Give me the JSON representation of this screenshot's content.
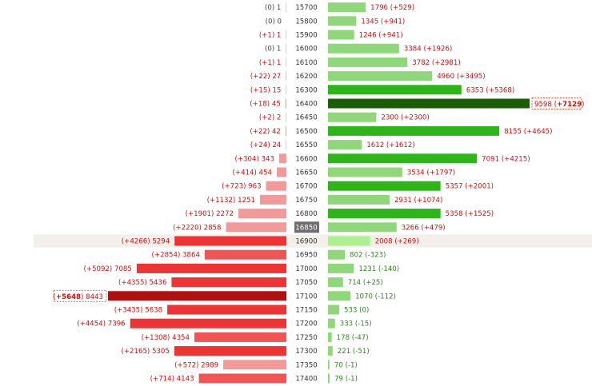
{
  "chart_data": {
    "type": "bar",
    "title": "",
    "highlight_strike": "16850",
    "colors": {
      "put_light": "#f29a9a",
      "put_mid": "#f05555",
      "put_strong": "#ec3434",
      "put_max": "#b01010",
      "call_light": "#8fd77a",
      "call_strong": "#2db51a",
      "call_max": "#1b5c06",
      "call_atm": "#aef091",
      "strike_bg_atm": "#6e6e6e",
      "row_highlight": "#f3f0ec",
      "text_red": "#cc1111",
      "text_green": "#2a8a18",
      "text_grey": "#444444"
    },
    "rows": [
      {
        "strike": "15700",
        "put_oi": 1,
        "put_chg": "(0)",
        "call_oi": 1796,
        "call_chg": "(+529)"
      },
      {
        "strike": "15800",
        "put_oi": 0,
        "put_chg": "(0)",
        "call_oi": 1345,
        "call_chg": "(+941)"
      },
      {
        "strike": "15900",
        "put_oi": 1,
        "put_chg": "(+1)",
        "call_oi": 1246,
        "call_chg": "(+941)"
      },
      {
        "strike": "16000",
        "put_oi": 1,
        "put_chg": "(0)",
        "call_oi": 3384,
        "call_chg": "(+1926)"
      },
      {
        "strike": "16100",
        "put_oi": 1,
        "put_chg": "(+1)",
        "call_oi": 3782,
        "call_chg": "(+2981)"
      },
      {
        "strike": "16200",
        "put_oi": 27,
        "put_chg": "(+22)",
        "call_oi": 4960,
        "call_chg": "(+3495)"
      },
      {
        "strike": "16300",
        "put_oi": 15,
        "put_chg": "(+15)",
        "call_oi": 6353,
        "call_chg": "(+5368)"
      },
      {
        "strike": "16400",
        "put_oi": 45,
        "put_chg": "(+18)",
        "call_oi": 9598,
        "call_chg": "(+7129)"
      },
      {
        "strike": "16450",
        "put_oi": 2,
        "put_chg": "(+2)",
        "call_oi": 2300,
        "call_chg": "(+2300)"
      },
      {
        "strike": "16500",
        "put_oi": 42,
        "put_chg": "(+22)",
        "call_oi": 8155,
        "call_chg": "(+4645)"
      },
      {
        "strike": "16550",
        "put_oi": 24,
        "put_chg": "(+24)",
        "call_oi": 1612,
        "call_chg": "(+1612)"
      },
      {
        "strike": "16600",
        "put_oi": 343,
        "put_chg": "(+304)",
        "call_oi": 7091,
        "call_chg": "(+4215)"
      },
      {
        "strike": "16650",
        "put_oi": 454,
        "put_chg": "(+414)",
        "call_oi": 3534,
        "call_chg": "(+1797)"
      },
      {
        "strike": "16700",
        "put_oi": 963,
        "put_chg": "(+723)",
        "call_oi": 5357,
        "call_chg": "(+2001)"
      },
      {
        "strike": "16750",
        "put_oi": 1251,
        "put_chg": "(+1132)",
        "call_oi": 2931,
        "call_chg": "(+1074)"
      },
      {
        "strike": "16800",
        "put_oi": 2272,
        "put_chg": "(+1901)",
        "call_oi": 5358,
        "call_chg": "(+1525)"
      },
      {
        "strike": "16850",
        "put_oi": 2858,
        "put_chg": "(+2220)",
        "call_oi": 3266,
        "call_chg": "(+479)"
      },
      {
        "strike": "16900",
        "put_oi": 5294,
        "put_chg": "(+4266)",
        "call_oi": 2008,
        "call_chg": "(+269)"
      },
      {
        "strike": "16950",
        "put_oi": 3864,
        "put_chg": "(+2854)",
        "call_oi": 802,
        "call_chg": "(-323)"
      },
      {
        "strike": "17000",
        "put_oi": 7085,
        "put_chg": "(+5092)",
        "call_oi": 1231,
        "call_chg": "(-140)"
      },
      {
        "strike": "17050",
        "put_oi": 5436,
        "put_chg": "(+4355)",
        "call_oi": 714,
        "call_chg": "(+25)"
      },
      {
        "strike": "17100",
        "put_oi": 8443,
        "put_chg": "(+5648)",
        "call_oi": 1070,
        "call_chg": "(-112)"
      },
      {
        "strike": "17150",
        "put_oi": 5638,
        "put_chg": "(+3435)",
        "call_oi": 533,
        "call_chg": "(0)"
      },
      {
        "strike": "17200",
        "put_oi": 7396,
        "put_chg": "(+4454)",
        "call_oi": 333,
        "call_chg": "(-15)"
      },
      {
        "strike": "17250",
        "put_oi": 4354,
        "put_chg": "(+1308)",
        "call_oi": 178,
        "call_chg": "(-47)"
      },
      {
        "strike": "17300",
        "put_oi": 5305,
        "put_chg": "(+2165)",
        "call_oi": 221,
        "call_chg": "(-51)"
      },
      {
        "strike": "17350",
        "put_oi": 2989,
        "put_chg": "(+572)",
        "call_oi": 70,
        "call_chg": "(-1)"
      },
      {
        "strike": "17400",
        "put_oi": 4143,
        "put_chg": "(+714)",
        "call_oi": 79,
        "call_chg": "(-1)"
      }
    ],
    "put_max_strike": "17100",
    "call_max_strike": "16400",
    "put_scale_max": 8443,
    "call_scale_max": 9598
  }
}
